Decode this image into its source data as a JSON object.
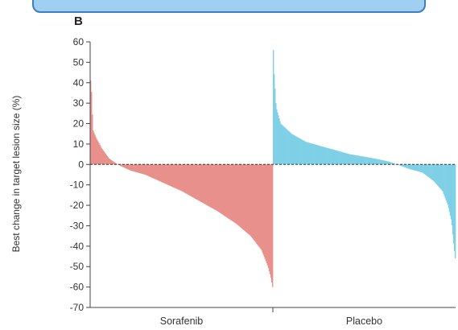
{
  "chart_data": {
    "type": "bar",
    "subtype": "waterfall",
    "panel_label": "B",
    "ylabel": "Best change in target lesion size (%)",
    "ylim": [
      -70,
      60
    ],
    "yticks": [
      60,
      50,
      40,
      30,
      20,
      10,
      0,
      -10,
      -20,
      -30,
      -40,
      -50,
      -60,
      -70
    ],
    "reference_line": {
      "y": 0,
      "style": "dashed"
    },
    "grid": false,
    "series": [
      {
        "name": "Sorafenib",
        "color": "#e8908b",
        "n_bars": 220,
        "profile": [
          [
            0,
            41
          ],
          [
            0.005,
            35
          ],
          [
            0.012,
            17
          ],
          [
            0.03,
            13
          ],
          [
            0.06,
            8
          ],
          [
            0.1,
            3
          ],
          [
            0.14,
            0.5
          ],
          [
            0.17,
            -1
          ],
          [
            0.22,
            -3
          ],
          [
            0.3,
            -5
          ],
          [
            0.4,
            -9
          ],
          [
            0.5,
            -13
          ],
          [
            0.6,
            -18
          ],
          [
            0.7,
            -23
          ],
          [
            0.8,
            -29
          ],
          [
            0.88,
            -35
          ],
          [
            0.94,
            -42
          ],
          [
            0.975,
            -50
          ],
          [
            0.99,
            -55
          ],
          [
            1,
            -60
          ]
        ]
      },
      {
        "name": "Placebo",
        "color": "#7fd0e6",
        "n_bars": 220,
        "profile": [
          [
            0,
            56
          ],
          [
            0.004,
            45
          ],
          [
            0.015,
            28
          ],
          [
            0.04,
            20
          ],
          [
            0.1,
            15
          ],
          [
            0.18,
            11
          ],
          [
            0.3,
            8
          ],
          [
            0.42,
            5
          ],
          [
            0.55,
            3
          ],
          [
            0.63,
            1.5
          ],
          [
            0.68,
            0
          ],
          [
            0.74,
            -2
          ],
          [
            0.82,
            -4
          ],
          [
            0.88,
            -8
          ],
          [
            0.93,
            -13
          ],
          [
            0.96,
            -20
          ],
          [
            0.98,
            -28
          ],
          [
            0.99,
            -38
          ],
          [
            1,
            -46
          ]
        ]
      }
    ],
    "categories": [
      "Sorafenib",
      "Placebo"
    ]
  }
}
